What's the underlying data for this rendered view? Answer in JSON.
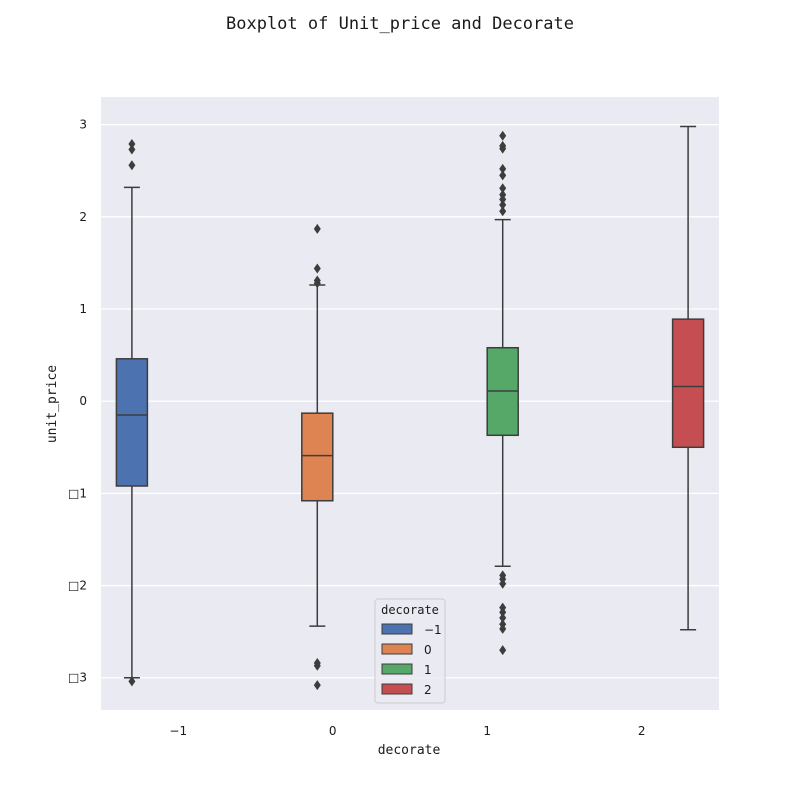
{
  "chart_data": {
    "type": "box",
    "title": "Boxplot of Unit_price and Decorate",
    "xlabel": "decorate",
    "ylabel": "unit_price",
    "ylim": [
      -3.35,
      3.3
    ],
    "yticks": [
      3,
      2,
      1,
      0,
      -1,
      -2,
      -3
    ],
    "ytick_labels": [
      "3",
      "2",
      "1",
      "0",
      "□1",
      "□2",
      "□3"
    ],
    "xtick_labels": [
      "−1",
      "0",
      "1",
      "2"
    ],
    "grid": true,
    "legend": {
      "title": "decorate",
      "placement": "bottom-center",
      "entries": [
        "−1",
        "0",
        "1",
        "2"
      ]
    },
    "series": [
      {
        "name": "−1",
        "color": "#4c72b0",
        "category_index": 0,
        "offset": -0.3,
        "q1": -0.92,
        "median": -0.15,
        "q3": 0.46,
        "whisker_low": -3.0,
        "whisker_high": 2.32,
        "outliers": [
          2.79,
          2.73,
          2.56,
          -3.04
        ]
      },
      {
        "name": "0",
        "color": "#dd8452",
        "category_index": 1,
        "offset": -0.1,
        "q1": -1.08,
        "median": -0.59,
        "q3": -0.13,
        "whisker_low": -2.44,
        "whisker_high": 1.26,
        "outliers": [
          1.87,
          1.44,
          1.31,
          1.28,
          -2.84,
          -2.87,
          -3.08
        ]
      },
      {
        "name": "1",
        "color": "#55a868",
        "category_index": 2,
        "offset": 0.1,
        "q1": -0.37,
        "median": 0.11,
        "q3": 0.58,
        "whisker_low": -1.79,
        "whisker_high": 1.97,
        "outliers": [
          2.88,
          2.77,
          2.74,
          2.52,
          2.45,
          2.31,
          2.24,
          2.19,
          2.13,
          2.06,
          -1.89,
          -1.93,
          -1.98,
          -2.24,
          -2.29,
          -2.35,
          -2.42,
          -2.47,
          -2.7
        ]
      },
      {
        "name": "2",
        "color": "#c44e52",
        "category_index": 3,
        "offset": 0.3,
        "q1": -0.5,
        "median": 0.16,
        "q3": 0.89,
        "whisker_low": -2.48,
        "whisker_high": 2.98,
        "outliers": []
      }
    ]
  }
}
